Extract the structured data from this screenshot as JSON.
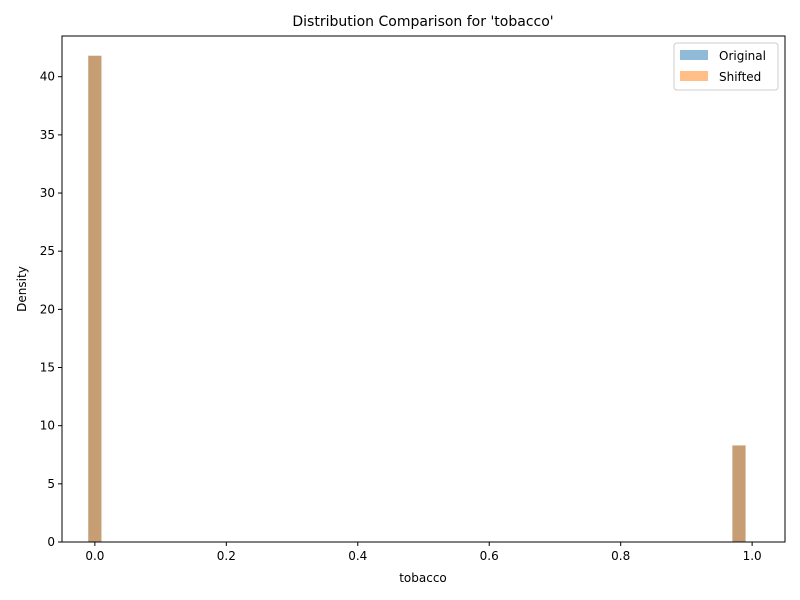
{
  "chart_data": {
    "type": "bar",
    "title": "Distribution Comparison for 'tobacco'",
    "xlabel": "tobacco",
    "ylabel": "Density",
    "xlim": [
      -0.05,
      1.05
    ],
    "ylim": [
      0,
      43.5
    ],
    "xticks": [
      "0.0",
      "0.2",
      "0.4",
      "0.6",
      "0.8",
      "1.0"
    ],
    "xtick_values": [
      0,
      0.2,
      0.4,
      0.6,
      0.8,
      1.0
    ],
    "yticks": [
      "0",
      "5",
      "10",
      "15",
      "20",
      "25",
      "30",
      "35",
      "40"
    ],
    "ytick_values": [
      0,
      5,
      10,
      15,
      20,
      25,
      30,
      35,
      40
    ],
    "bin_width": 0.02,
    "series": [
      {
        "name": "Original",
        "color": "#1f77b4",
        "opacity": 0.5,
        "bins": [
          {
            "x": 0.0,
            "value": 41.8
          },
          {
            "x": 0.98,
            "value": 8.3
          }
        ]
      },
      {
        "name": "Shifted",
        "color": "#ff7f0e",
        "opacity": 0.5,
        "bins": [
          {
            "x": 0.0,
            "value": 41.8
          },
          {
            "x": 0.98,
            "value": 8.3
          }
        ]
      }
    ],
    "legend": "top-right",
    "grid": false
  }
}
